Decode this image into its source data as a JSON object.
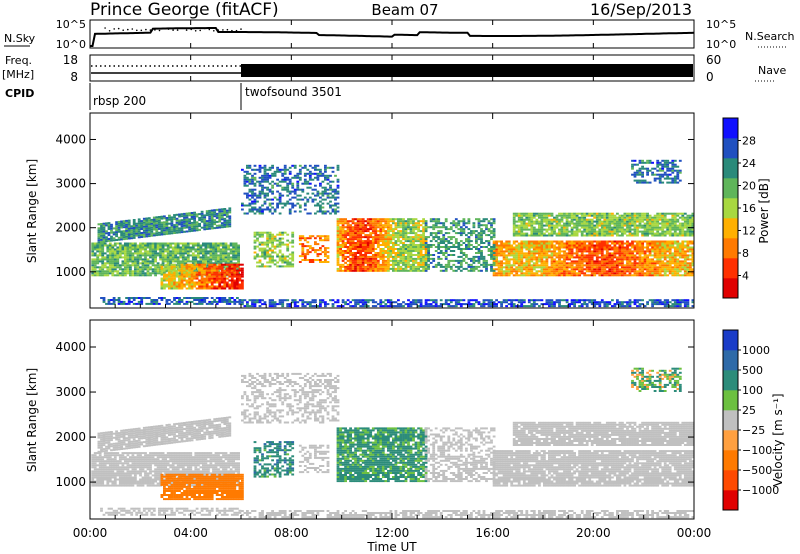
{
  "header": {
    "station": "Prince George (fitACF)",
    "beam": "Beam 07",
    "date": "16/Sep/2013"
  },
  "top_panels": {
    "nsky_label": "N.Sky",
    "nsearch_label": "N.Search",
    "nsky_ticks": [
      "10^5",
      "10^0"
    ],
    "nsearch_ticks": [
      "10^5",
      "10^0"
    ],
    "freq_label_1": "Freq.",
    "freq_label_2": "[MHz]",
    "freq_ticks": [
      "18",
      "8"
    ],
    "nave_label": "Nave",
    "nave_ticks": [
      "60",
      "0"
    ],
    "cpid_label": "CPID",
    "cpid_segments": [
      {
        "name": "rbsp 200",
        "start_hour": 0,
        "end_hour": 6
      },
      {
        "name": "twofsound 3501",
        "start_hour": 6,
        "end_hour": 24
      }
    ]
  },
  "chart_data": [
    {
      "type": "heatmap",
      "title": "",
      "xlabel": "",
      "ylabel": "Slant Range [km]",
      "xlim": [
        0,
        24
      ],
      "ylim": [
        180,
        4600
      ],
      "yticks": [
        1000,
        2000,
        3000,
        4000
      ],
      "colorbar": {
        "label": "Power [dB]",
        "ticks": [
          "4",
          "8",
          "12",
          "16",
          "20",
          "24",
          "28"
        ],
        "colors": [
          "#1010ff",
          "#2050c0",
          "#2a8a7a",
          "#5fb55a",
          "#a8d840",
          "#ffb000",
          "#ff7a00",
          "#ff3000",
          "#e00000"
        ]
      }
    },
    {
      "type": "heatmap",
      "title": "",
      "xlabel": "Time UT",
      "ylabel": "Slant Range [km]",
      "xlim": [
        0,
        24
      ],
      "ylim": [
        180,
        4600
      ],
      "yticks": [
        1000,
        2000,
        3000,
        4000
      ],
      "xticks": [
        "00:00",
        "04:00",
        "08:00",
        "12:00",
        "16:00",
        "20:00",
        "00:00"
      ],
      "colorbar": {
        "label": "Velocity [m s⁻¹]",
        "ticks": [
          "1000",
          "500",
          "100",
          "25",
          "−25",
          "−100",
          "−500",
          "−1000"
        ],
        "colors": [
          "#1a3cc8",
          "#2e6aa8",
          "#2c8c7a",
          "#6cc040",
          "#c0c0c0",
          "#ffa040",
          "#ff7a00",
          "#ff4a00",
          "#e00000"
        ]
      }
    }
  ],
  "colors": {
    "ground_scatter": "#c0c0c0",
    "frame": "#000000"
  }
}
